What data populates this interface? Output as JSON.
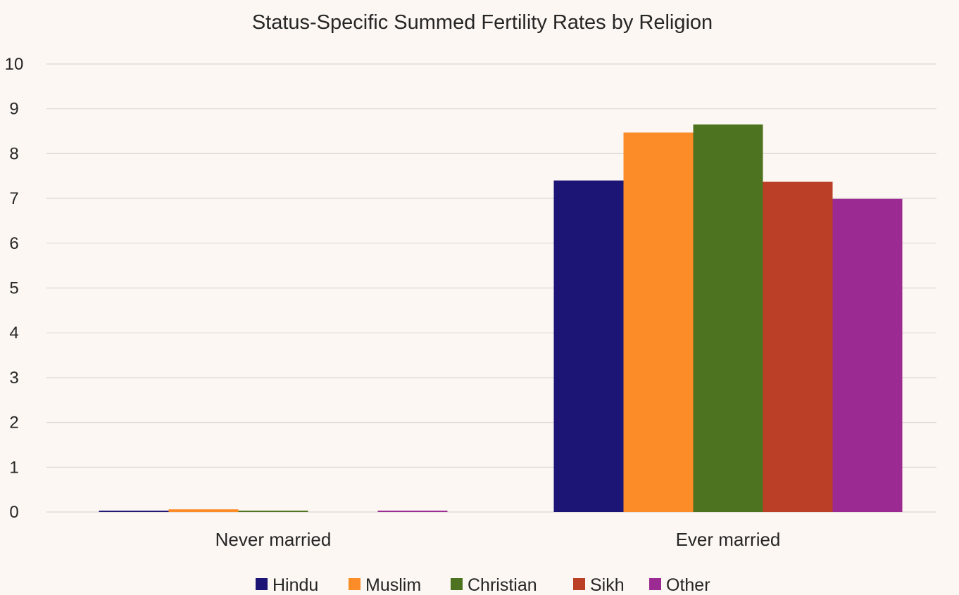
{
  "chart_data": {
    "type": "bar",
    "title": "Status-Specific Summed Fertility Rates by Religion",
    "xlabel": "",
    "ylabel": "",
    "ylim": [
      0,
      10
    ],
    "yticks": [
      0,
      1,
      2,
      3,
      4,
      5,
      6,
      7,
      8,
      9,
      10
    ],
    "grid": true,
    "legend_position": "bottom",
    "categories": [
      "Never married",
      "Ever married"
    ],
    "series": [
      {
        "name": "Hindu",
        "color": "#1d1576",
        "values": [
          0.03,
          7.4
        ]
      },
      {
        "name": "Muslim",
        "color": "#fb8c28",
        "values": [
          0.06,
          8.47
        ]
      },
      {
        "name": "Christian",
        "color": "#4e7320",
        "values": [
          0.03,
          8.65
        ]
      },
      {
        "name": "Sikh",
        "color": "#bb3e26",
        "values": [
          0.0,
          7.37
        ]
      },
      {
        "name": "Other",
        "color": "#9b2a93",
        "values": [
          0.03,
          6.99
        ]
      }
    ]
  }
}
